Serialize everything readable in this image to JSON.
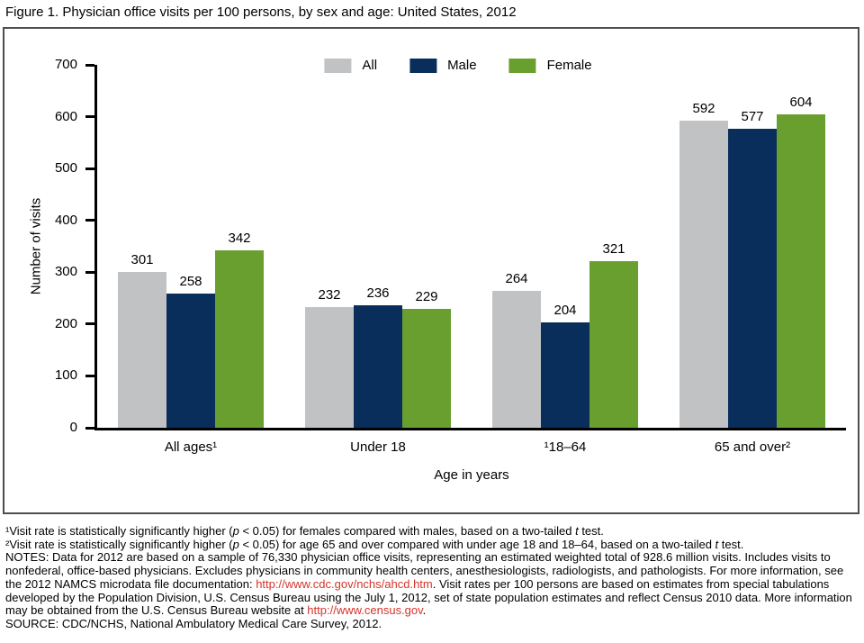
{
  "page": {
    "title": "Figure 1. Physician office visits per 100 persons, by sex and age: United States, 2012"
  },
  "chart_data": {
    "type": "bar",
    "title": "Figure 1. Physician office visits per 100 persons, by sex and age: United States, 2012",
    "categories": [
      "All ages¹",
      "Under 18",
      "¹18–64",
      "65 and over²"
    ],
    "series": [
      {
        "name": "All",
        "color": "#c1c2c4",
        "values": [
          301,
          232,
          264,
          592
        ]
      },
      {
        "name": "Male",
        "color": "#092e5c",
        "values": [
          258,
          236,
          204,
          577
        ]
      },
      {
        "name": "Female",
        "color": "#699f2e",
        "values": [
          342,
          229,
          321,
          604
        ]
      }
    ],
    "xlabel": "Age in years",
    "ylabel": "Number of visits",
    "ylim": [
      0,
      700
    ],
    "yticks": [
      0,
      100,
      200,
      300,
      400,
      500,
      600,
      700
    ],
    "legend_position": "top",
    "grid": false,
    "bar_value_labels": true
  },
  "colors": {
    "link": "#d4342a",
    "axis": "#000000",
    "box_border": "#4e4e4e"
  },
  "footnotes": {
    "paragraphs": [
      {
        "name": "footnote-1",
        "segments": [
          {
            "t": "¹Visit rate is statistically significantly higher ("
          },
          {
            "t": "p",
            "s": "i"
          },
          {
            "t": " < 0.05) for females compared with males, based on a two-tailed "
          },
          {
            "t": "t",
            "s": "i"
          },
          {
            "t": " test."
          }
        ]
      },
      {
        "name": "footnote-2",
        "segments": [
          {
            "t": "²Visit rate is statistically significantly higher ("
          },
          {
            "t": "p",
            "s": "i"
          },
          {
            "t": " < 0.05) for age 65 and over compared with under age 18 and 18–64, based on a two-tailed "
          },
          {
            "t": "t",
            "s": "i"
          },
          {
            "t": " test."
          }
        ]
      },
      {
        "name": "notes",
        "segments": [
          {
            "t": "NOTES: Data for 2012 are based on a sample of 76,330 physician office visits, representing an estimated weighted total of 928.6 million visits. Includes visits to nonfederal, office-based physicians. Excludes physicians in community health centers, anesthesiologists, radiologists, and pathologists. For more information, see the 2012 NAMCS microdata file documentation: "
          },
          {
            "t": "http://www.cdc.gov/nchs/ahcd.htm",
            "s": "link"
          },
          {
            "t": ". Visit rates per 100 persons are based on estimates from special tabulations developed by the Population Division, U.S. Census Bureau using the July 1, 2012, set of state population estimates and reflect Census 2010 data. More information may be obtained from the U.S. Census Bureau website at "
          },
          {
            "t": "http://www.census.gov",
            "s": "link"
          },
          {
            "t": "."
          }
        ]
      },
      {
        "name": "source-line",
        "segments": [
          {
            "t": "SOURCE: CDC/NCHS, National Ambulatory Medical Care Survey, 2012."
          }
        ]
      }
    ]
  }
}
